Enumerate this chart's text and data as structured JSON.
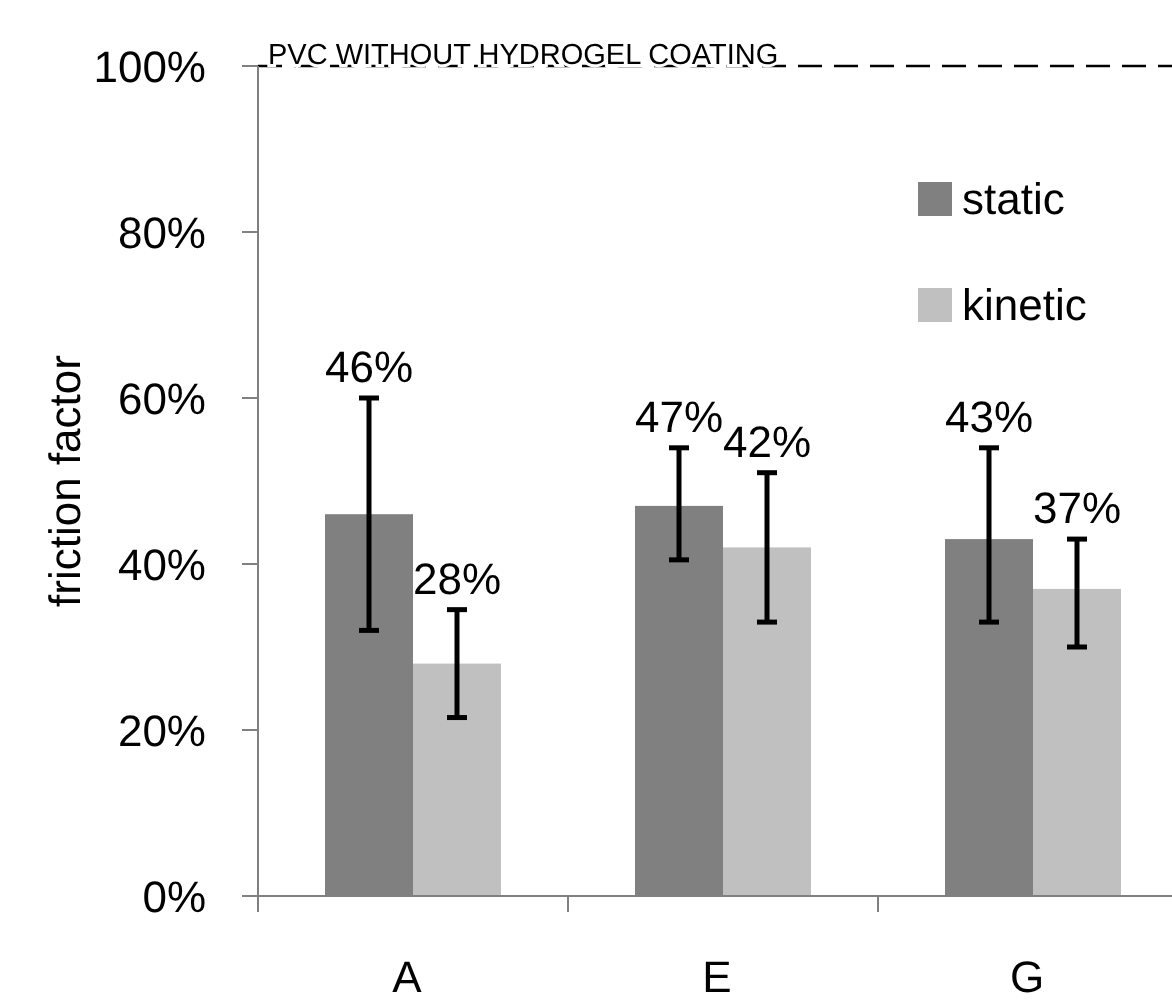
{
  "chart_data": {
    "type": "bar",
    "ylabel": "friction factor",
    "categories": [
      "A",
      "E",
      "G"
    ],
    "ylim": [
      0,
      100
    ],
    "yticks": [
      {
        "value": 0,
        "label": "0%"
      },
      {
        "value": 20,
        "label": "20%"
      },
      {
        "value": 40,
        "label": "40%"
      },
      {
        "value": 60,
        "label": "60%"
      },
      {
        "value": 80,
        "label": "80%"
      },
      {
        "value": 100,
        "label": "100%"
      }
    ],
    "series": [
      {
        "name": "static",
        "color": "#808080",
        "values": [
          46,
          47,
          43
        ],
        "errors": [
          [
            32,
            60
          ],
          [
            40.5,
            54
          ],
          [
            33,
            54
          ]
        ],
        "value_labels": [
          "46%",
          "47%",
          "43%"
        ]
      },
      {
        "name": "kinetic",
        "color": "#c0c0c0",
        "values": [
          28,
          42,
          37
        ],
        "errors": [
          [
            21.5,
            34.5
          ],
          [
            33,
            51
          ],
          [
            30,
            43
          ]
        ],
        "value_labels": [
          "28%",
          "42%",
          "37%"
        ]
      }
    ],
    "ref_lines": [
      {
        "axis": "y",
        "value": 100,
        "label": "PVC WITHOUT HYDROGEL COATING",
        "line_style": "dashed",
        "color": "#000000"
      }
    ],
    "grid": false,
    "legend": "top right"
  }
}
